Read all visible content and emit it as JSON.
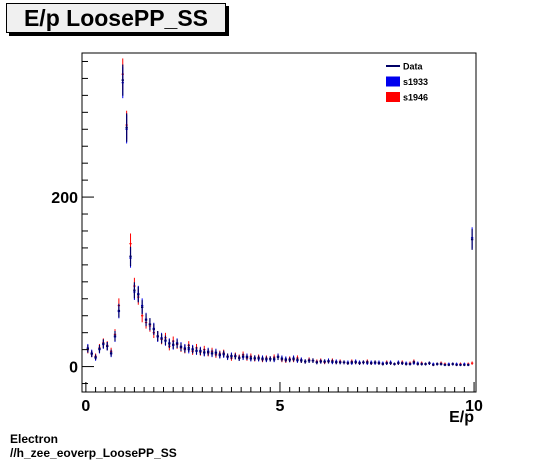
{
  "chart_data": {
    "type": "scatter",
    "title": "E/p LoosePP_SS",
    "xlabel": "E/p",
    "ylabel": "",
    "xlim": [
      -0.1,
      10.05
    ],
    "ylim": [
      -30,
      370
    ],
    "x_ticks": [
      "0",
      "5",
      "10"
    ],
    "y_ticks": [
      "0",
      "200"
    ],
    "legend": {
      "placement": "top-right",
      "entries": [
        "Data",
        "s1933",
        "s1946"
      ]
    },
    "grid": false,
    "series": [
      {
        "name": "s1946",
        "color": "#ff0000",
        "x": [
          0.05,
          0.15,
          0.25,
          0.35,
          0.45,
          0.55,
          0.65,
          0.75,
          0.85,
          0.95,
          1.05,
          1.15,
          1.25,
          1.35,
          1.45,
          1.55,
          1.65,
          1.75,
          1.85,
          1.95,
          2.05,
          2.15,
          2.25,
          2.35,
          2.45,
          2.55,
          2.65,
          2.75,
          2.85,
          2.95,
          3.05,
          3.15,
          3.25,
          3.35,
          3.45,
          3.55,
          3.65,
          3.75,
          3.85,
          3.95,
          4.05,
          4.15,
          4.25,
          4.35,
          4.45,
          4.55,
          4.65,
          4.75,
          4.85,
          4.95,
          5.05,
          5.15,
          5.25,
          5.35,
          5.45,
          5.55,
          5.65,
          5.75,
          5.85,
          5.95,
          6.05,
          6.15,
          6.25,
          6.35,
          6.45,
          6.55,
          6.65,
          6.75,
          6.85,
          6.95,
          7.05,
          7.15,
          7.25,
          7.35,
          7.45,
          7.55,
          7.65,
          7.75,
          7.85,
          7.95,
          8.05,
          8.15,
          8.25,
          8.35,
          8.45,
          8.55,
          8.65,
          8.75,
          8.85,
          8.95,
          9.05,
          9.15,
          9.25,
          9.35,
          9.45,
          9.55,
          9.65,
          9.75,
          9.85,
          9.95
        ],
        "values": [
          20,
          15,
          12,
          22,
          28,
          25,
          18,
          38,
          72,
          345,
          285,
          145,
          95,
          82,
          60,
          52,
          48,
          40,
          36,
          32,
          34,
          24,
          30,
          26,
          22,
          20,
          25,
          18,
          22,
          17,
          20,
          16,
          18,
          14,
          15,
          16,
          12,
          10,
          13,
          11,
          14,
          10,
          12,
          9,
          11,
          8,
          10,
          9,
          11,
          12,
          8,
          7,
          9,
          8,
          10,
          7,
          6,
          8,
          7,
          6,
          7,
          5,
          6,
          7,
          5,
          6,
          5,
          4,
          6,
          5,
          4,
          5,
          6,
          4,
          5,
          4,
          3,
          5,
          4,
          3,
          4,
          5,
          3,
          4,
          6,
          3,
          4,
          3,
          4,
          2,
          3,
          4,
          3,
          2,
          3,
          2,
          3,
          2,
          3,
          4
        ]
      },
      {
        "name": "s1933",
        "color": "#0000ee",
        "x": [
          0.05,
          0.15,
          0.25,
          0.35,
          0.45,
          0.55,
          0.65,
          0.75,
          0.85,
          0.95,
          1.05,
          1.15,
          1.25,
          1.35,
          1.45,
          1.55,
          1.65,
          1.75,
          1.85,
          1.95,
          2.05,
          2.15,
          2.25,
          2.35,
          2.45,
          2.55,
          2.65,
          2.75,
          2.85,
          2.95,
          3.05,
          3.15,
          3.25,
          3.35,
          3.45,
          3.55,
          3.65,
          3.75,
          3.85,
          3.95,
          4.05,
          4.15,
          4.25,
          4.35,
          4.45,
          4.55,
          4.65,
          4.75,
          4.85,
          4.95,
          5.05,
          5.15,
          5.25,
          5.35,
          5.45,
          5.55,
          5.65,
          5.75,
          5.85,
          5.95,
          6.05,
          6.15,
          6.25,
          6.35,
          6.45,
          6.55,
          6.65,
          6.75,
          6.85,
          6.95,
          7.05,
          7.15,
          7.25,
          7.35,
          7.45,
          7.55,
          7.65,
          7.75,
          7.85,
          7.95,
          8.05,
          8.15,
          8.25,
          8.35,
          8.45,
          8.55,
          8.65,
          8.75,
          8.85,
          8.95,
          9.05,
          9.15,
          9.25,
          9.35,
          9.45,
          9.55,
          9.65,
          9.75,
          9.85,
          9.95
        ],
        "values": [
          22,
          16,
          10,
          20,
          26,
          24,
          15,
          35,
          65,
          335,
          280,
          128,
          88,
          86,
          72,
          56,
          50,
          45,
          35,
          34,
          30,
          28,
          25,
          28,
          24,
          22,
          20,
          21,
          18,
          19,
          16,
          18,
          15,
          17,
          13,
          14,
          11,
          13,
          12,
          10,
          11,
          12,
          9,
          10,
          9,
          10,
          8,
          9,
          8,
          12,
          10,
          9,
          8,
          10,
          7,
          8,
          6,
          7,
          7,
          5,
          6,
          6,
          7,
          5,
          6,
          5,
          5,
          5,
          4,
          6,
          5,
          5,
          4,
          5,
          4,
          5,
          4,
          4,
          5,
          3,
          5,
          4,
          4,
          3,
          4,
          4,
          3,
          3,
          4,
          3,
          3,
          3,
          2,
          3,
          3,
          3,
          2,
          3,
          2,
          152
        ]
      },
      {
        "name": "Data",
        "color": "#000066",
        "x": [
          0.05,
          0.15,
          0.25,
          0.35,
          0.45,
          0.55,
          0.65,
          0.75,
          0.85,
          0.95,
          1.05,
          1.15,
          1.25,
          1.35,
          1.45,
          1.55,
          1.65,
          1.75,
          1.85,
          1.95,
          2.05,
          2.15,
          2.25,
          2.35,
          2.45,
          2.55,
          2.65,
          2.75,
          2.85,
          2.95,
          3.05,
          3.15,
          3.25,
          3.35,
          3.45,
          3.55,
          3.65,
          3.75,
          3.85,
          3.95,
          4.05,
          4.15,
          4.25,
          4.35,
          4.45,
          4.55,
          4.65,
          4.75,
          4.85,
          4.95,
          5.05,
          5.15,
          5.25,
          5.35,
          5.45,
          5.55,
          5.65,
          5.75,
          5.85,
          5.95,
          6.05,
          6.15,
          6.25,
          6.35,
          6.45,
          6.55,
          6.65,
          6.75,
          6.85,
          6.95,
          7.05,
          7.15,
          7.25,
          7.35,
          7.45,
          7.55,
          7.65,
          7.75,
          7.85,
          7.95,
          8.05,
          8.15,
          8.25,
          8.35,
          8.45,
          8.55,
          8.65,
          8.75,
          8.85,
          8.95,
          9.05,
          9.15,
          9.25,
          9.35,
          9.45,
          9.55,
          9.65,
          9.75,
          9.85,
          9.95
        ],
        "values": [
          21,
          15,
          11,
          21,
          27,
          24,
          16,
          36,
          66,
          338,
          282,
          130,
          90,
          85,
          70,
          55,
          50,
          44,
          36,
          33,
          31,
          27,
          26,
          27,
          23,
          21,
          22,
          20,
          19,
          18,
          17,
          17,
          16,
          16,
          14,
          15,
          12,
          12,
          12,
          10,
          12,
          11,
          10,
          10,
          10,
          9,
          9,
          9,
          9,
          11,
          9,
          8,
          8,
          9,
          8,
          7,
          6,
          7,
          7,
          5,
          6,
          6,
          6,
          6,
          5,
          5,
          5,
          4,
          5,
          5,
          4,
          5,
          5,
          4,
          5,
          4,
          3,
          4,
          4,
          3,
          4,
          4,
          3,
          3,
          5,
          3,
          3,
          3,
          4,
          2,
          3,
          3,
          2,
          2,
          3,
          2,
          2,
          2,
          2,
          150
        ]
      }
    ]
  },
  "footer": {
    "line1": "Electron",
    "line2": "//h_zee_eoverp_LoosePP_SS"
  }
}
